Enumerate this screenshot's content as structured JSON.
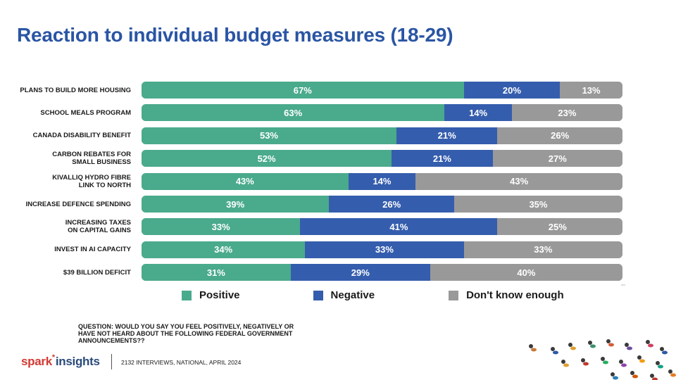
{
  "title": "Reaction to individual budget measures (18-29)",
  "chart_data": {
    "type": "bar",
    "orientation": "horizontal",
    "stacked": true,
    "normalized": true,
    "title": "Reaction to individual budget measures (18-29)",
    "categories": [
      [
        "PLANS TO BUILD MORE HOUSING"
      ],
      [
        "SCHOOL MEALS PROGRAM"
      ],
      [
        "CANADA DISABILITY BENEFIT"
      ],
      [
        "CARBON REBATES  FOR",
        "SMALL BUSINESS"
      ],
      [
        "KIVALLIQ HYDRO FIBRE",
        "LINK TO NORTH"
      ],
      [
        "INCREASE DEFENCE SPENDING"
      ],
      [
        "INCREASING TAXES",
        "ON CAPITAL GAINS"
      ],
      [
        "INVEST IN AI CAPACITY"
      ],
      [
        "$39 BILLION DEFICIT"
      ]
    ],
    "series": [
      {
        "name": "Positive",
        "color": "#4aaa8c",
        "values": [
          67,
          63,
          53,
          52,
          43,
          39,
          33,
          34,
          31
        ]
      },
      {
        "name": "Negative",
        "color": "#355dad",
        "values": [
          20,
          14,
          21,
          21,
          14,
          26,
          41,
          33,
          29
        ]
      },
      {
        "name": "Don't know enough",
        "color": "#999999",
        "values": [
          13,
          23,
          26,
          27,
          43,
          35,
          25,
          33,
          40
        ]
      }
    ],
    "value_suffix": "%",
    "legend_position": "bottom",
    "grid": false
  },
  "footer": {
    "question": "QUESTION: WOULD YOU SAY YOU FEEL POSITIVELY, NEGATIVELY OR HAVE NOT HEARD ABOUT THE FOLLOWING FEDERAL GOVERNMENT ANNOUNCEMENTS??",
    "logo_primary": "spark",
    "logo_secondary": "insights",
    "source": "2132 INTERVIEWS, NATIONAL, APRIL 2024"
  }
}
